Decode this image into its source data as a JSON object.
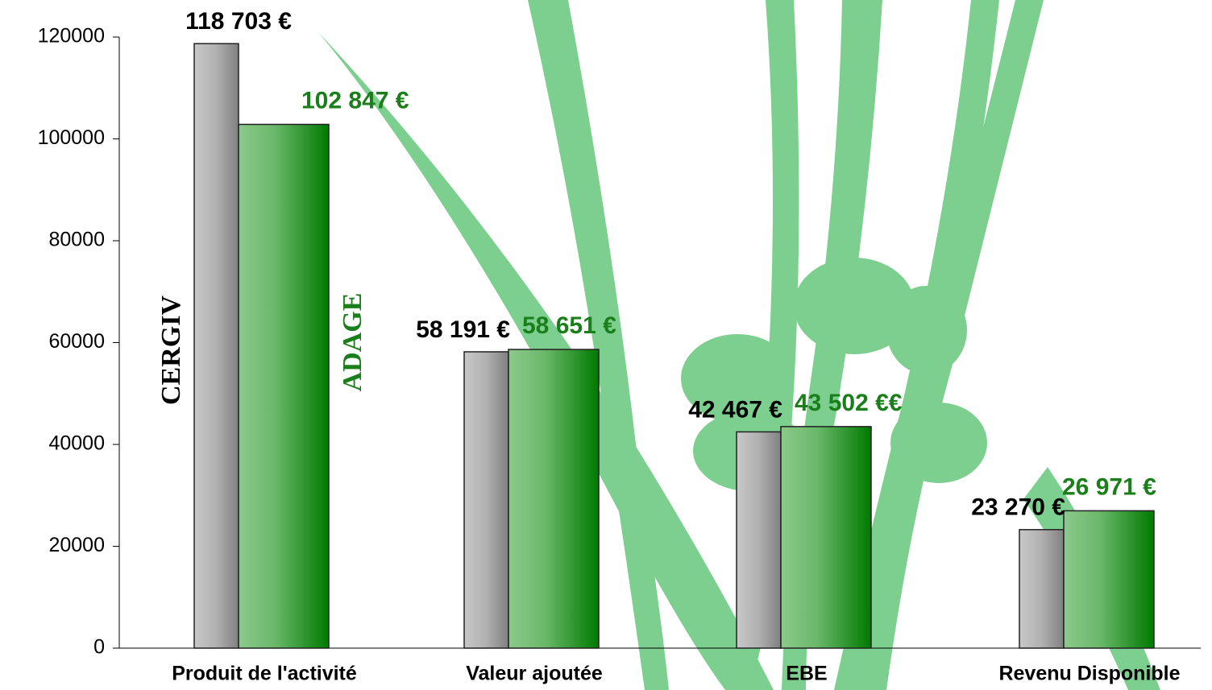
{
  "chart_data": {
    "type": "bar",
    "categories": [
      "Produit de l'activité",
      "Valeur ajoutée",
      "EBE",
      "Revenu Disponible"
    ],
    "series": [
      {
        "name": "CERGIV",
        "color": "#808080",
        "values": [
          118703,
          58191,
          42467,
          23270
        ],
        "value_labels": [
          "118 703 €",
          "58 191 €",
          "42 467 €",
          "23 270 €"
        ]
      },
      {
        "name": "ADAGE",
        "color": "#007a00",
        "values": [
          102847,
          58651,
          43502,
          26971
        ],
        "value_labels": [
          "102 847 €",
          "58 651 €",
          "43 502 €€",
          "26 971 €"
        ]
      }
    ],
    "ylim": [
      0,
      120000
    ],
    "yticks": [
      0,
      20000,
      40000,
      60000,
      80000,
      100000,
      120000
    ]
  }
}
